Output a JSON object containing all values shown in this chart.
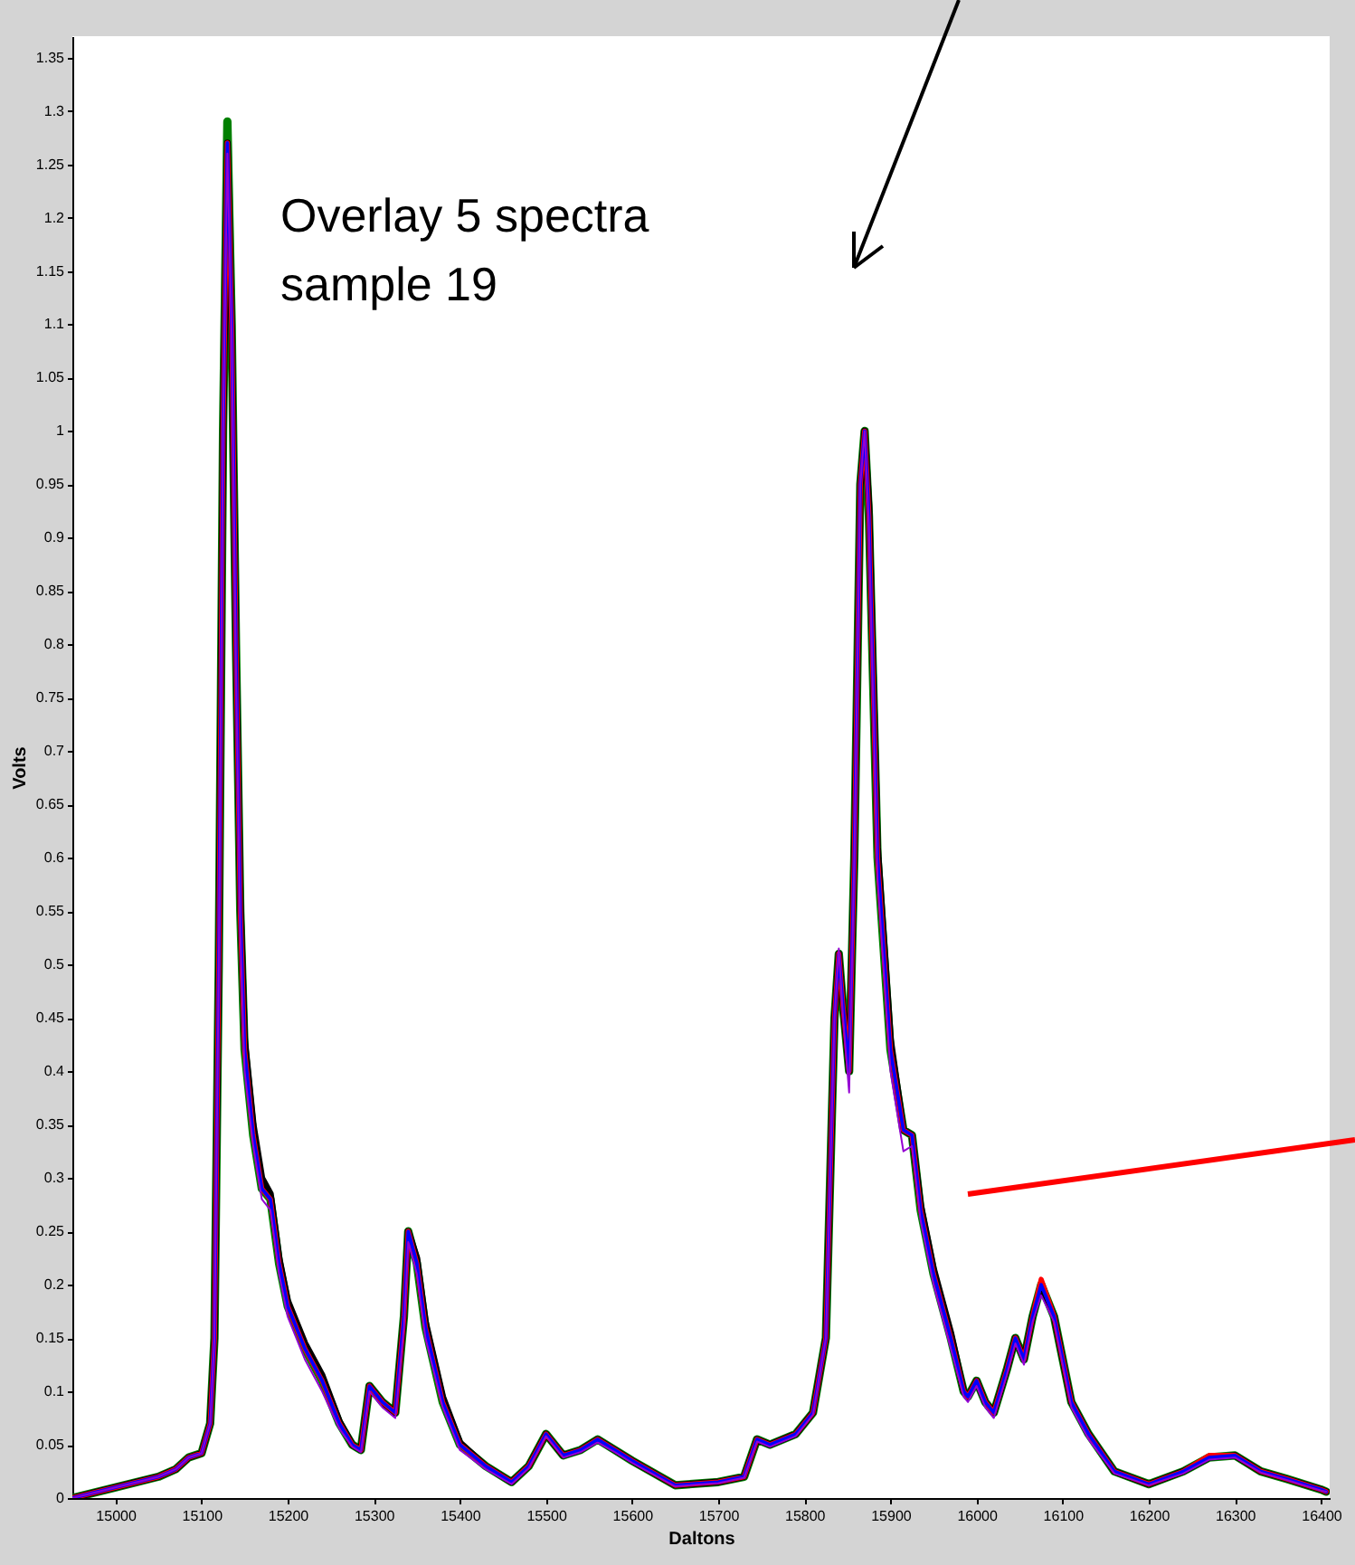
{
  "chart_data": {
    "type": "line",
    "xlabel": "Daltons",
    "ylabel": "Volts",
    "annotations": [
      "Overlay 5 spectra\nsample 19"
    ],
    "xlim": [
      14950,
      16410
    ],
    "ylim": [
      0,
      1.37
    ],
    "xticks": [
      15000,
      15100,
      15200,
      15300,
      15400,
      15500,
      15600,
      15700,
      15800,
      15900,
      16000,
      16100,
      16200,
      16300,
      16400
    ],
    "yticks": [
      0,
      0.05,
      0.1,
      0.15,
      0.2,
      0.25,
      0.3,
      0.35,
      0.4,
      0.45,
      0.5,
      0.55,
      0.6,
      0.65,
      0.7,
      0.75,
      0.8,
      0.85,
      0.9,
      0.95,
      1,
      1.05,
      1.1,
      1.15,
      1.2,
      1.25,
      1.3,
      1.35
    ],
    "grid": false,
    "legend": false,
    "line_style": "solid",
    "x": [
      14950,
      15000,
      15050,
      15070,
      15085,
      15100,
      15110,
      15115,
      15120,
      15125,
      15130,
      15135,
      15140,
      15145,
      15150,
      15160,
      15170,
      15180,
      15190,
      15200,
      15220,
      15240,
      15260,
      15275,
      15285,
      15295,
      15310,
      15325,
      15335,
      15340,
      15350,
      15360,
      15380,
      15400,
      15430,
      15460,
      15480,
      15500,
      15520,
      15540,
      15560,
      15580,
      15600,
      15650,
      15700,
      15730,
      15745,
      15760,
      15790,
      15810,
      15825,
      15835,
      15840,
      15845,
      15852,
      15858,
      15865,
      15870,
      15875,
      15885,
      15900,
      15915,
      15925,
      15935,
      15950,
      15970,
      15985,
      15990,
      16000,
      16010,
      16020,
      16035,
      16045,
      16055,
      16065,
      16075,
      16090,
      16110,
      16130,
      16160,
      16200,
      16240,
      16270,
      16300,
      16330,
      16360,
      16400,
      16406
    ],
    "series": [
      {
        "color": "#008000",
        "values": [
          0,
          0.01,
          0.02,
          0.027,
          0.038,
          0.042,
          0.07,
          0.15,
          0.5,
          1,
          1.29,
          1.1,
          0.8,
          0.55,
          0.42,
          0.34,
          0.29,
          0.28,
          0.22,
          0.18,
          0.14,
          0.11,
          0.07,
          0.05,
          0.045,
          0.105,
          0.09,
          0.08,
          0.17,
          0.25,
          0.22,
          0.16,
          0.09,
          0.05,
          0.03,
          0.015,
          0.03,
          0.06,
          0.04,
          0.045,
          0.055,
          0.045,
          0.035,
          0.012,
          0.015,
          0.02,
          0.055,
          0.05,
          0.06,
          0.08,
          0.15,
          0.45,
          0.51,
          0.46,
          0.4,
          0.6,
          0.95,
          1,
          0.92,
          0.6,
          0.42,
          0.345,
          0.34,
          0.27,
          0.21,
          0.15,
          0.1,
          0.095,
          0.11,
          0.09,
          0.08,
          0.12,
          0.15,
          0.13,
          0.17,
          0.2,
          0.17,
          0.09,
          0.06,
          0.025,
          0.013,
          0.025,
          0.038,
          0.04,
          0.025,
          0.018,
          0.008,
          0.006
        ]
      },
      {
        "color": "#000000",
        "values": [
          0,
          0.01,
          0.02,
          0.027,
          0.038,
          0.042,
          0.07,
          0.15,
          0.5,
          1,
          1.27,
          1.1,
          0.8,
          0.56,
          0.43,
          0.35,
          0.3,
          0.285,
          0.225,
          0.185,
          0.145,
          0.115,
          0.072,
          0.05,
          0.045,
          0.105,
          0.09,
          0.08,
          0.17,
          0.25,
          0.225,
          0.165,
          0.095,
          0.052,
          0.03,
          0.015,
          0.03,
          0.06,
          0.04,
          0.045,
          0.055,
          0.045,
          0.035,
          0.012,
          0.015,
          0.02,
          0.055,
          0.05,
          0.06,
          0.08,
          0.15,
          0.45,
          0.51,
          0.46,
          0.4,
          0.6,
          0.95,
          1,
          0.93,
          0.61,
          0.43,
          0.345,
          0.34,
          0.275,
          0.215,
          0.155,
          0.1,
          0.095,
          0.11,
          0.09,
          0.08,
          0.12,
          0.15,
          0.13,
          0.17,
          0.2,
          0.17,
          0.09,
          0.06,
          0.025,
          0.013,
          0.025,
          0.038,
          0.04,
          0.025,
          0.018,
          0.008,
          0.006
        ]
      },
      {
        "color": "#ff0000",
        "values": [
          0,
          0.01,
          0.02,
          0.027,
          0.038,
          0.042,
          0.07,
          0.15,
          0.5,
          1,
          1.27,
          1.1,
          0.8,
          0.55,
          0.42,
          0.34,
          0.29,
          0.28,
          0.22,
          0.18,
          0.14,
          0.11,
          0.07,
          0.05,
          0.045,
          0.105,
          0.09,
          0.08,
          0.17,
          0.25,
          0.22,
          0.16,
          0.09,
          0.05,
          0.03,
          0.015,
          0.03,
          0.06,
          0.04,
          0.045,
          0.055,
          0.045,
          0.035,
          0.012,
          0.015,
          0.02,
          0.055,
          0.05,
          0.06,
          0.08,
          0.15,
          0.45,
          0.51,
          0.46,
          0.4,
          0.6,
          0.95,
          1,
          0.92,
          0.6,
          0.42,
          0.345,
          0.34,
          0.27,
          0.21,
          0.15,
          0.1,
          0.095,
          0.11,
          0.09,
          0.08,
          0.12,
          0.15,
          0.13,
          0.17,
          0.205,
          0.17,
          0.09,
          0.06,
          0.025,
          0.013,
          0.025,
          0.04,
          0.04,
          0.025,
          0.018,
          0.008,
          0.006
        ]
      },
      {
        "color": "#0000ff",
        "values": [
          0,
          0.01,
          0.02,
          0.027,
          0.038,
          0.042,
          0.07,
          0.15,
          0.5,
          1,
          1.27,
          1.1,
          0.8,
          0.55,
          0.42,
          0.34,
          0.29,
          0.28,
          0.22,
          0.18,
          0.14,
          0.11,
          0.07,
          0.05,
          0.045,
          0.105,
          0.09,
          0.08,
          0.17,
          0.25,
          0.22,
          0.16,
          0.09,
          0.05,
          0.03,
          0.015,
          0.03,
          0.06,
          0.04,
          0.045,
          0.055,
          0.045,
          0.035,
          0.012,
          0.015,
          0.02,
          0.055,
          0.05,
          0.06,
          0.08,
          0.15,
          0.45,
          0.51,
          0.46,
          0.4,
          0.6,
          0.95,
          1,
          0.92,
          0.6,
          0.42,
          0.345,
          0.34,
          0.27,
          0.21,
          0.15,
          0.1,
          0.095,
          0.11,
          0.09,
          0.08,
          0.12,
          0.15,
          0.13,
          0.17,
          0.2,
          0.17,
          0.09,
          0.06,
          0.025,
          0.013,
          0.025,
          0.038,
          0.04,
          0.025,
          0.018,
          0.008,
          0.006
        ]
      },
      {
        "color": "#9400d3",
        "values": [
          0,
          0.01,
          0.02,
          0.027,
          0.038,
          0.042,
          0.07,
          0.15,
          0.5,
          1,
          1.26,
          1.09,
          0.78,
          0.53,
          0.4,
          0.33,
          0.28,
          0.27,
          0.21,
          0.17,
          0.13,
          0.1,
          0.065,
          0.048,
          0.043,
          0.1,
          0.085,
          0.075,
          0.16,
          0.24,
          0.21,
          0.15,
          0.085,
          0.045,
          0.027,
          0.013,
          0.028,
          0.058,
          0.038,
          0.043,
          0.052,
          0.043,
          0.033,
          0.011,
          0.014,
          0.019,
          0.053,
          0.048,
          0.058,
          0.078,
          0.15,
          0.45,
          0.515,
          0.45,
          0.38,
          0.6,
          0.95,
          1,
          0.91,
          0.58,
          0.4,
          0.325,
          0.33,
          0.26,
          0.2,
          0.14,
          0.095,
          0.09,
          0.105,
          0.085,
          0.075,
          0.115,
          0.145,
          0.125,
          0.165,
          0.19,
          0.165,
          0.085,
          0.055,
          0.023,
          0.012,
          0.023,
          0.036,
          0.038,
          0.024,
          0.017,
          0.007,
          0.006
        ]
      }
    ]
  }
}
